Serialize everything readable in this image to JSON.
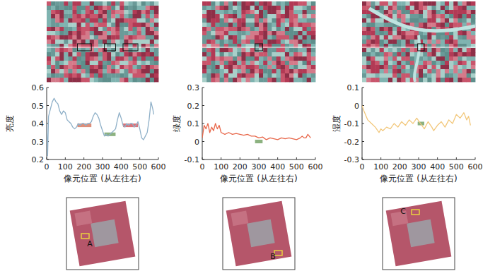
{
  "chart_data": [
    {
      "type": "line",
      "y_label": "亮度",
      "x_label": "像元位置 (从左往右)",
      "color": "#8fb0c8",
      "xlim": [
        0,
        600
      ],
      "xticks": [
        0,
        100,
        200,
        300,
        400,
        500,
        600
      ],
      "ylim": [
        0.2,
        0.6
      ],
      "yticks": [
        0.2,
        0.3,
        0.4,
        0.5,
        0.6
      ],
      "x": [
        0,
        5,
        10,
        20,
        30,
        40,
        50,
        60,
        70,
        80,
        90,
        100,
        110,
        120,
        130,
        140,
        150,
        160,
        170,
        180,
        190,
        200,
        210,
        220,
        230,
        240,
        250,
        260,
        270,
        280,
        290,
        300,
        310,
        320,
        330,
        340,
        350,
        360,
        370,
        380,
        390,
        400,
        410,
        420,
        430,
        440,
        450,
        460,
        470,
        480,
        490,
        500,
        510,
        520,
        530,
        540,
        550,
        560,
        570,
        575
      ],
      "values": [
        0.4,
        0.22,
        0.44,
        0.48,
        0.52,
        0.54,
        0.52,
        0.51,
        0.47,
        0.45,
        0.47,
        0.46,
        0.42,
        0.41,
        0.4,
        0.38,
        0.37,
        0.38,
        0.4,
        0.39,
        0.4,
        0.4,
        0.39,
        0.4,
        0.4,
        0.41,
        0.44,
        0.46,
        0.45,
        0.43,
        0.39,
        0.36,
        0.33,
        0.34,
        0.33,
        0.34,
        0.35,
        0.36,
        0.37,
        0.42,
        0.46,
        0.43,
        0.39,
        0.38,
        0.4,
        0.39,
        0.4,
        0.4,
        0.38,
        0.39,
        0.41,
        0.37,
        0.32,
        0.31,
        0.33,
        0.35,
        0.42,
        0.52,
        0.48,
        0.45
      ],
      "bands": [
        {
          "x": [
            165,
            240
          ],
          "y": [
            0.38,
            0.4
          ],
          "color": "#d9826a"
        },
        {
          "x": [
            310,
            370
          ],
          "y": [
            0.33,
            0.35
          ],
          "color": "#7faa72"
        },
        {
          "x": [
            410,
            490
          ],
          "y": [
            0.38,
            0.4
          ],
          "color": "#d9646a"
        }
      ],
      "annotation": "A"
    },
    {
      "type": "line",
      "y_label": "绿度",
      "x_label": "像元位置 (从左往右)",
      "color": "#e8674a",
      "xlim": [
        0,
        600
      ],
      "xticks": [
        0,
        100,
        200,
        300,
        400,
        500,
        600
      ],
      "ylim": [
        -0.1,
        0.3
      ],
      "yticks": [
        -0.1,
        0,
        0.1,
        0.2,
        0.3
      ],
      "x": [
        0,
        10,
        20,
        30,
        40,
        50,
        60,
        70,
        80,
        90,
        100,
        120,
        140,
        160,
        180,
        200,
        220,
        240,
        260,
        280,
        300,
        320,
        340,
        360,
        380,
        400,
        420,
        440,
        460,
        480,
        500,
        520,
        530,
        540,
        550,
        560,
        575
      ],
      "values": [
        0.02,
        0.09,
        0.07,
        0.1,
        0.05,
        0.08,
        0.06,
        0.1,
        0.07,
        0.09,
        0.05,
        0.04,
        0.05,
        0.04,
        0.045,
        0.04,
        0.035,
        0.04,
        0.03,
        0.03,
        0.02,
        0.025,
        0.01,
        0.02,
        0.015,
        0.01,
        0.02,
        0.015,
        0.02,
        0.015,
        0.01,
        0.02,
        0.03,
        0.02,
        0.02,
        0.04,
        0.02
      ],
      "bands": [
        {
          "x": [
            280,
            320
          ],
          "y": [
            -0.01,
            0.01
          ],
          "color": "#7faa72"
        }
      ],
      "annotation": "B"
    },
    {
      "type": "line",
      "y_label": "湿度",
      "x_label": "像元位置 (从左往右)",
      "color": "#f2c77a",
      "xlim": [
        0,
        600
      ],
      "xticks": [
        0,
        100,
        200,
        300,
        400,
        500,
        600
      ],
      "ylim": [
        -0.3,
        0.1
      ],
      "yticks": [
        -0.3,
        -0.2,
        -0.1,
        0,
        0.1
      ],
      "x": [
        0,
        10,
        30,
        50,
        70,
        90,
        100,
        110,
        130,
        150,
        170,
        190,
        210,
        230,
        250,
        270,
        290,
        310,
        330,
        350,
        370,
        380,
        400,
        420,
        440,
        460,
        480,
        500,
        520,
        540,
        555,
        565,
        575
      ],
      "values": [
        0,
        -0.03,
        -0.08,
        -0.1,
        -0.12,
        -0.15,
        -0.13,
        -0.14,
        -0.12,
        -0.13,
        -0.1,
        -0.12,
        -0.09,
        -0.11,
        -0.08,
        -0.1,
        -0.07,
        -0.1,
        -0.13,
        -0.09,
        -0.12,
        -0.14,
        -0.11,
        -0.09,
        -0.12,
        -0.08,
        -0.1,
        -0.05,
        -0.07,
        -0.04,
        -0.08,
        -0.06,
        -0.11
      ],
      "bands": [
        {
          "x": [
            295,
            330
          ],
          "y": [
            -0.11,
            -0.09
          ],
          "color": "#7faa72"
        }
      ],
      "annotation": "C"
    }
  ]
}
